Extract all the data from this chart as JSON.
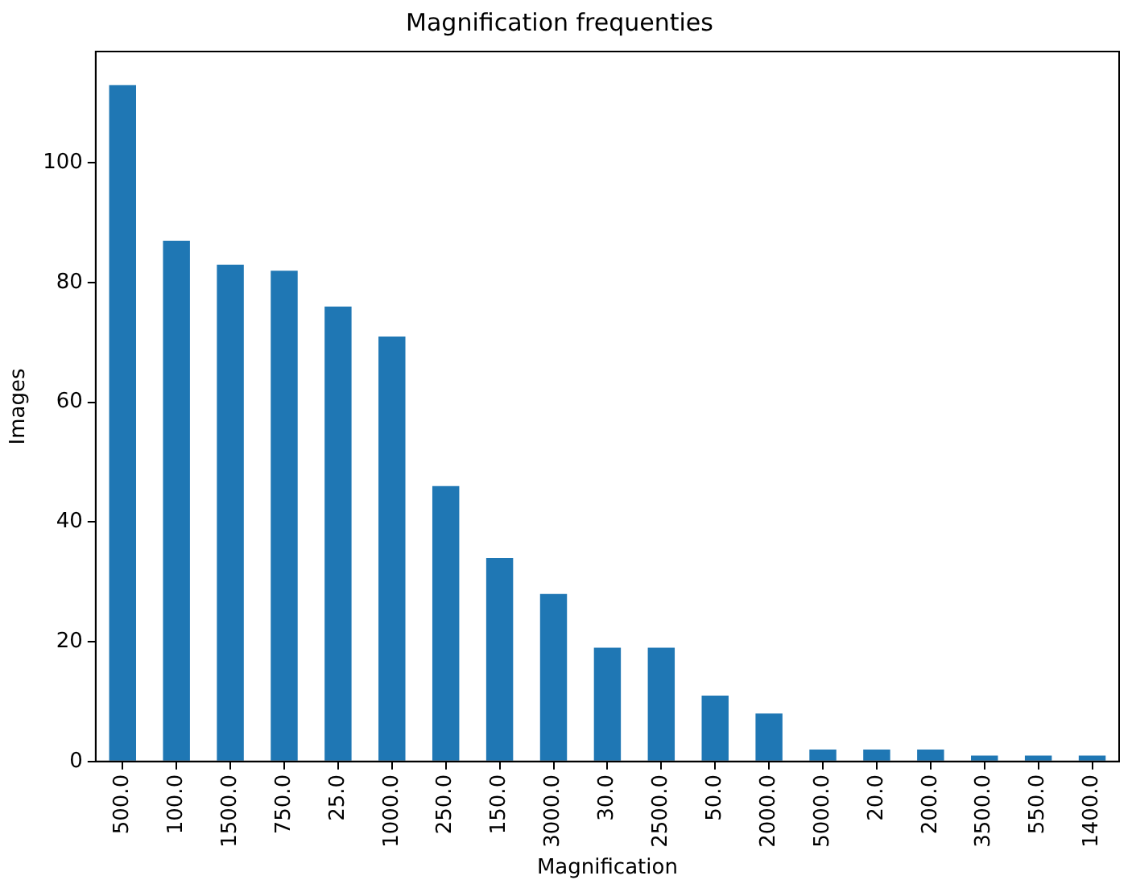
{
  "chart_data": {
    "type": "bar",
    "title": "Magnification frequenties",
    "xlabel": "Magnification",
    "ylabel": "Images",
    "categories": [
      "500.0",
      "100.0",
      "1500.0",
      "750.0",
      "25.0",
      "1000.0",
      "250.0",
      "150.0",
      "3000.0",
      "30.0",
      "2500.0",
      "50.0",
      "2000.0",
      "5000.0",
      "20.0",
      "200.0",
      "3500.0",
      "550.0",
      "1400.0"
    ],
    "values": [
      113,
      87,
      83,
      82,
      76,
      71,
      46,
      34,
      28,
      19,
      19,
      11,
      8,
      2,
      2,
      2,
      1,
      1,
      1
    ],
    "color": "#1f77b4",
    "ylim": [
      0,
      118.6
    ],
    "yticks": [
      0,
      20,
      40,
      60,
      80,
      100
    ],
    "grid": false,
    "legend": false
  }
}
